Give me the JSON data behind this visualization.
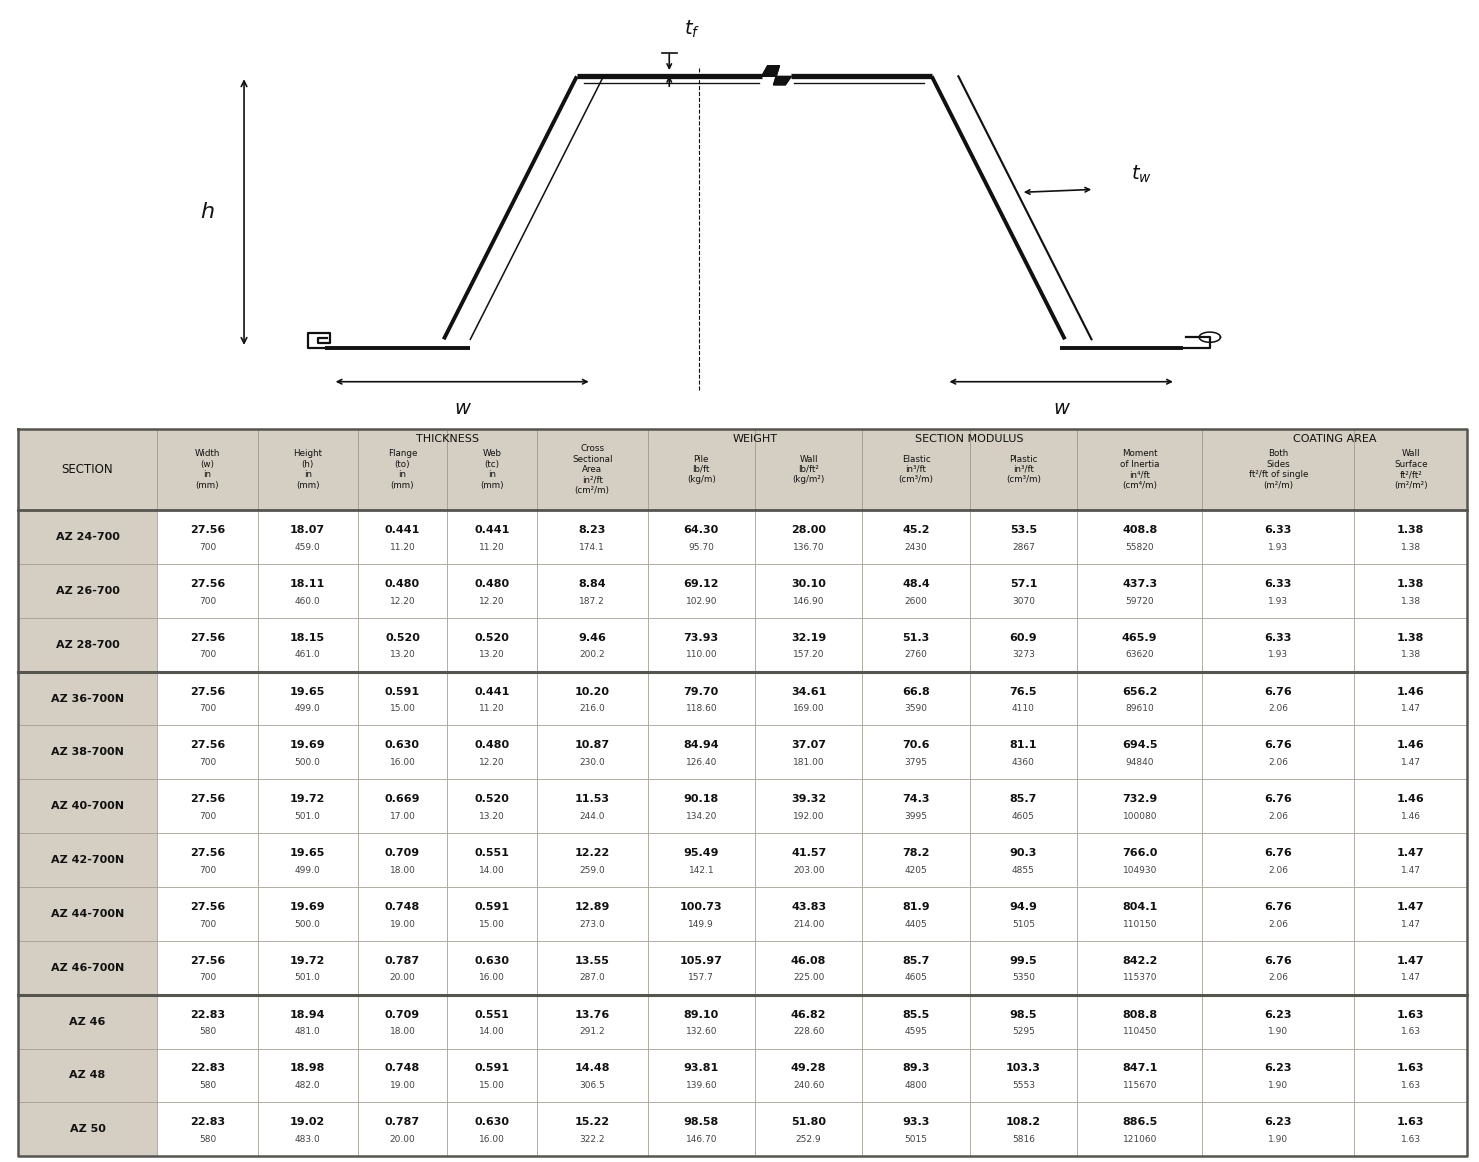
{
  "header_bg": "#d4cfc2",
  "table_bg": "#ffffff",
  "border_color": "#888880",
  "rows": [
    {
      "section": "AZ 24-700",
      "values": [
        [
          "27.56",
          "700"
        ],
        [
          "18.07",
          "459.0"
        ],
        [
          "0.441",
          "11.20"
        ],
        [
          "0.441",
          "11.20"
        ],
        [
          "8.23",
          "174.1"
        ],
        [
          "64.30",
          "95.70"
        ],
        [
          "28.00",
          "136.70"
        ],
        [
          "45.2",
          "2430"
        ],
        [
          "53.5",
          "2867"
        ],
        [
          "408.8",
          "55820"
        ],
        [
          "6.33",
          "1.93"
        ],
        [
          "1.38",
          "1.38"
        ]
      ]
    },
    {
      "section": "AZ 26-700",
      "values": [
        [
          "27.56",
          "700"
        ],
        [
          "18.11",
          "460.0"
        ],
        [
          "0.480",
          "12.20"
        ],
        [
          "0.480",
          "12.20"
        ],
        [
          "8.84",
          "187.2"
        ],
        [
          "69.12",
          "102.90"
        ],
        [
          "30.10",
          "146.90"
        ],
        [
          "48.4",
          "2600"
        ],
        [
          "57.1",
          "3070"
        ],
        [
          "437.3",
          "59720"
        ],
        [
          "6.33",
          "1.93"
        ],
        [
          "1.38",
          "1.38"
        ]
      ]
    },
    {
      "section": "AZ 28-700",
      "values": [
        [
          "27.56",
          "700"
        ],
        [
          "18.15",
          "461.0"
        ],
        [
          "0.520",
          "13.20"
        ],
        [
          "0.520",
          "13.20"
        ],
        [
          "9.46",
          "200.2"
        ],
        [
          "73.93",
          "110.00"
        ],
        [
          "32.19",
          "157.20"
        ],
        [
          "51.3",
          "2760"
        ],
        [
          "60.9",
          "3273"
        ],
        [
          "465.9",
          "63620"
        ],
        [
          "6.33",
          "1.93"
        ],
        [
          "1.38",
          "1.38"
        ]
      ]
    },
    {
      "section": "AZ 36-700N",
      "values": [
        [
          "27.56",
          "700"
        ],
        [
          "19.65",
          "499.0"
        ],
        [
          "0.591",
          "15.00"
        ],
        [
          "0.441",
          "11.20"
        ],
        [
          "10.20",
          "216.0"
        ],
        [
          "79.70",
          "118.60"
        ],
        [
          "34.61",
          "169.00"
        ],
        [
          "66.8",
          "3590"
        ],
        [
          "76.5",
          "4110"
        ],
        [
          "656.2",
          "89610"
        ],
        [
          "6.76",
          "2.06"
        ],
        [
          "1.46",
          "1.47"
        ]
      ]
    },
    {
      "section": "AZ 38-700N",
      "values": [
        [
          "27.56",
          "700"
        ],
        [
          "19.69",
          "500.0"
        ],
        [
          "0.630",
          "16.00"
        ],
        [
          "0.480",
          "12.20"
        ],
        [
          "10.87",
          "230.0"
        ],
        [
          "84.94",
          "126.40"
        ],
        [
          "37.07",
          "181.00"
        ],
        [
          "70.6",
          "3795"
        ],
        [
          "81.1",
          "4360"
        ],
        [
          "694.5",
          "94840"
        ],
        [
          "6.76",
          "2.06"
        ],
        [
          "1.46",
          "1.47"
        ]
      ]
    },
    {
      "section": "AZ 40-700N",
      "values": [
        [
          "27.56",
          "700"
        ],
        [
          "19.72",
          "501.0"
        ],
        [
          "0.669",
          "17.00"
        ],
        [
          "0.520",
          "13.20"
        ],
        [
          "11.53",
          "244.0"
        ],
        [
          "90.18",
          "134.20"
        ],
        [
          "39.32",
          "192.00"
        ],
        [
          "74.3",
          "3995"
        ],
        [
          "85.7",
          "4605"
        ],
        [
          "732.9",
          "100080"
        ],
        [
          "6.76",
          "2.06"
        ],
        [
          "1.46",
          "1.46"
        ]
      ]
    },
    {
      "section": "AZ 42-700N",
      "values": [
        [
          "27.56",
          "700"
        ],
        [
          "19.65",
          "499.0"
        ],
        [
          "0.709",
          "18.00"
        ],
        [
          "0.551",
          "14.00"
        ],
        [
          "12.22",
          "259.0"
        ],
        [
          "95.49",
          "142.1"
        ],
        [
          "41.57",
          "203.00"
        ],
        [
          "78.2",
          "4205"
        ],
        [
          "90.3",
          "4855"
        ],
        [
          "766.0",
          "104930"
        ],
        [
          "6.76",
          "2.06"
        ],
        [
          "1.47",
          "1.47"
        ]
      ]
    },
    {
      "section": "AZ 44-700N",
      "values": [
        [
          "27.56",
          "700"
        ],
        [
          "19.69",
          "500.0"
        ],
        [
          "0.748",
          "19.00"
        ],
        [
          "0.591",
          "15.00"
        ],
        [
          "12.89",
          "273.0"
        ],
        [
          "100.73",
          "149.9"
        ],
        [
          "43.83",
          "214.00"
        ],
        [
          "81.9",
          "4405"
        ],
        [
          "94.9",
          "5105"
        ],
        [
          "804.1",
          "110150"
        ],
        [
          "6.76",
          "2.06"
        ],
        [
          "1.47",
          "1.47"
        ]
      ]
    },
    {
      "section": "AZ 46-700N",
      "values": [
        [
          "27.56",
          "700"
        ],
        [
          "19.72",
          "501.0"
        ],
        [
          "0.787",
          "20.00"
        ],
        [
          "0.630",
          "16.00"
        ],
        [
          "13.55",
          "287.0"
        ],
        [
          "105.97",
          "157.7"
        ],
        [
          "46.08",
          "225.00"
        ],
        [
          "85.7",
          "4605"
        ],
        [
          "99.5",
          "5350"
        ],
        [
          "842.2",
          "115370"
        ],
        [
          "6.76",
          "2.06"
        ],
        [
          "1.47",
          "1.47"
        ]
      ]
    },
    {
      "section": "AZ 46",
      "values": [
        [
          "22.83",
          "580"
        ],
        [
          "18.94",
          "481.0"
        ],
        [
          "0.709",
          "18.00"
        ],
        [
          "0.551",
          "14.00"
        ],
        [
          "13.76",
          "291.2"
        ],
        [
          "89.10",
          "132.60"
        ],
        [
          "46.82",
          "228.60"
        ],
        [
          "85.5",
          "4595"
        ],
        [
          "98.5",
          "5295"
        ],
        [
          "808.8",
          "110450"
        ],
        [
          "6.23",
          "1.90"
        ],
        [
          "1.63",
          "1.63"
        ]
      ]
    },
    {
      "section": "AZ 48",
      "values": [
        [
          "22.83",
          "580"
        ],
        [
          "18.98",
          "482.0"
        ],
        [
          "0.748",
          "19.00"
        ],
        [
          "0.591",
          "15.00"
        ],
        [
          "14.48",
          "306.5"
        ],
        [
          "93.81",
          "139.60"
        ],
        [
          "49.28",
          "240.60"
        ],
        [
          "89.3",
          "4800"
        ],
        [
          "103.3",
          "5553"
        ],
        [
          "847.1",
          "115670"
        ],
        [
          "6.23",
          "1.90"
        ],
        [
          "1.63",
          "1.63"
        ]
      ]
    },
    {
      "section": "AZ 50",
      "values": [
        [
          "22.83",
          "580"
        ],
        [
          "19.02",
          "483.0"
        ],
        [
          "0.787",
          "20.00"
        ],
        [
          "0.630",
          "16.00"
        ],
        [
          "15.22",
          "322.2"
        ],
        [
          "98.58",
          "146.70"
        ],
        [
          "51.80",
          "252.9"
        ],
        [
          "93.3",
          "5015"
        ],
        [
          "108.2",
          "5816"
        ],
        [
          "886.5",
          "121060"
        ],
        [
          "6.23",
          "1.90"
        ],
        [
          "1.63",
          "1.63"
        ]
      ]
    }
  ],
  "thick_border_after_rows": [
    2,
    8
  ],
  "diagram_pct": 0.365,
  "table_pct": 0.635
}
